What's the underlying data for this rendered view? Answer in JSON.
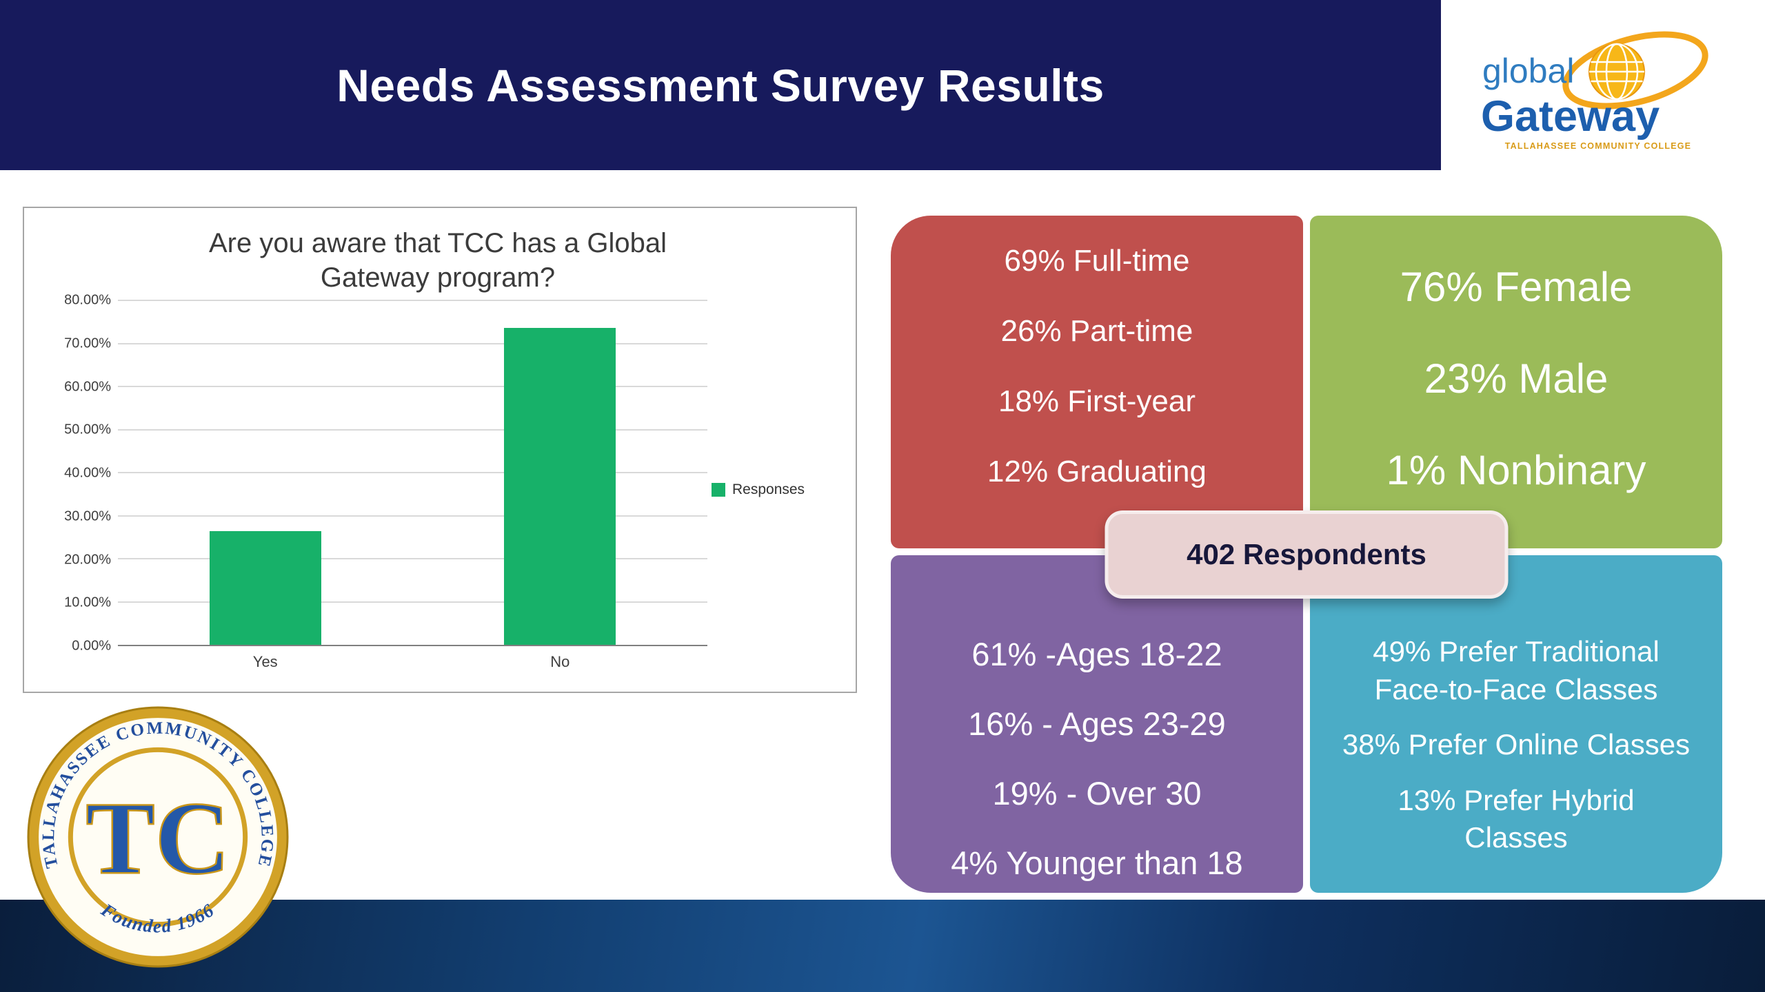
{
  "theme": {
    "header_bg": "#171a5c",
    "bar_green": "#17b169"
  },
  "header": {
    "title": "Needs Assessment Survey Results"
  },
  "logo": {
    "line1": "global",
    "line2": "Gateway",
    "caption": "TALLAHASSEE COMMUNITY COLLEGE"
  },
  "seal": {
    "ring_text": "TALLAHASSEE COMMUNITY COLLEGE",
    "monogram": "TC",
    "founded": "Founded 1966"
  },
  "chart_data": {
    "type": "bar",
    "title": "Are you aware that TCC has a Global\nGateway program?",
    "categories": [
      "Yes",
      "No"
    ],
    "values": [
      26.4,
      73.6
    ],
    "series_name": "Responses",
    "xlabel": "",
    "ylabel": "",
    "ylim": [
      0,
      80
    ],
    "ytick_step": 10,
    "yticks": [
      "0.00%",
      "10.00%",
      "20.00%",
      "30.00%",
      "40.00%",
      "50.00%",
      "60.00%",
      "70.00%",
      "80.00%"
    ],
    "bar_color": "#17b169",
    "grid": true,
    "legend_position": "right"
  },
  "stats": {
    "respondents_label": "402 Respondents",
    "enrollment": {
      "color": "#c0504d",
      "lines": [
        "69% Full-time",
        "26% Part-time",
        "18% First-year",
        "12% Graduating"
      ]
    },
    "gender": {
      "color": "#9bbb59",
      "lines": [
        "76% Female",
        "23% Male",
        "1% Nonbinary"
      ]
    },
    "age": {
      "color": "#8064a2",
      "lines": [
        "61% -Ages 18-22",
        "16% - Ages 23-29",
        "19% - Over 30",
        "4% Younger than 18"
      ]
    },
    "class_preference": {
      "color": "#4bacc6",
      "lines": [
        "49% Prefer Traditional\nFace-to-Face Classes",
        "38% Prefer Online Classes",
        "13% Prefer Hybrid\nClasses"
      ]
    }
  }
}
